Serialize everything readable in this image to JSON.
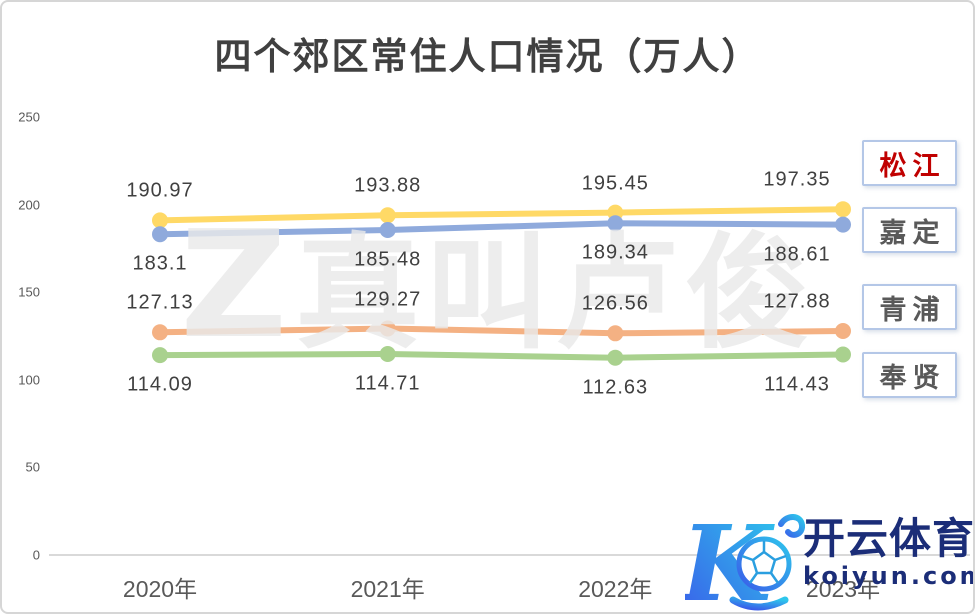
{
  "title": "四个郊区常住人口情况（万人）",
  "watermark": {
    "logo_glyph": "Z",
    "text": "真叫卢俊"
  },
  "logo": {
    "brand": "开云体育",
    "domain": "koiyun.com"
  },
  "colors": {
    "title_text": "#404040",
    "data_label_text": "#404040",
    "axis_text": "#595959",
    "axis_line": "#D9D9D9",
    "legend_border": "#B4C7E7",
    "songjiang_legend_text": "#C00000",
    "logo_navy": "#1B2D78",
    "logo_gradient_start": "#3A5BE9",
    "logo_gradient_end": "#2EC6EC"
  },
  "chart_data": {
    "type": "line",
    "title": "四个郊区常住人口情况（万人）",
    "categories": [
      "2020年",
      "2021年",
      "2022年",
      "2023年"
    ],
    "series": [
      {
        "name": "松江",
        "color": "#FFD966",
        "values": [
          190.97,
          193.88,
          195.45,
          197.35
        ],
        "label_position": "above",
        "legend_text_color": "#C00000"
      },
      {
        "name": "嘉定",
        "color": "#8FAADC",
        "values": [
          183.1,
          185.48,
          189.34,
          188.61
        ],
        "label_position": "below",
        "legend_text_color": "#595959"
      },
      {
        "name": "青浦",
        "color": "#F4B183",
        "values": [
          127.13,
          129.27,
          126.56,
          127.88
        ],
        "label_position": "above",
        "legend_text_color": "#595959"
      },
      {
        "name": "奉贤",
        "color": "#A9D18E",
        "values": [
          114.09,
          114.71,
          112.63,
          114.43
        ],
        "label_position": "below",
        "legend_text_color": "#595959"
      }
    ],
    "y_ticks": [
      0,
      50,
      100,
      150,
      200,
      250
    ],
    "ylim": [
      0,
      250
    ],
    "grid": false,
    "markers": "circle",
    "legend_position": "right",
    "xlabel": "",
    "ylabel": ""
  }
}
